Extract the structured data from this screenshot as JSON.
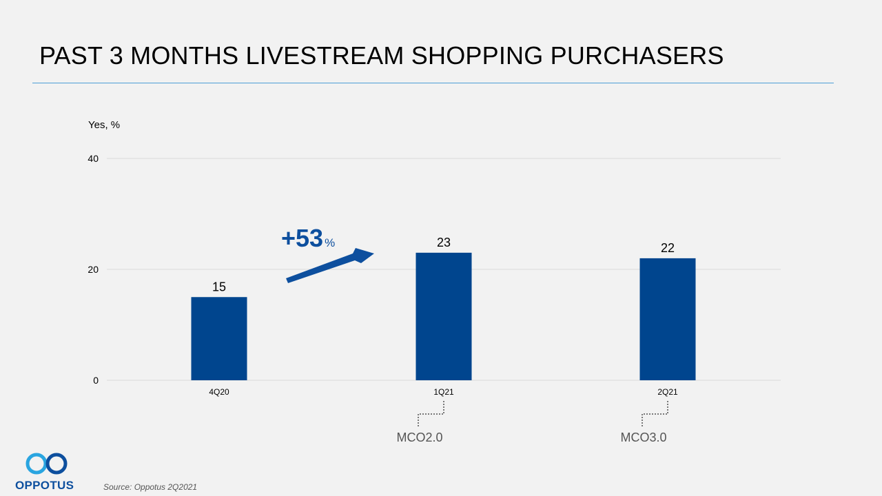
{
  "slide": {
    "title": "PAST 3 MONTHS LIVESTREAM SHOPPING PURCHASERS",
    "source": "Source: Oppotus 2Q2021",
    "logo_text": "OPPOTUS"
  },
  "colors": {
    "bar": "#00458e",
    "accent": "#0d4f9e",
    "logo_light": "#2aa5e0",
    "grid": "#d9d9d9",
    "rule": "#4a9cd6"
  },
  "chart_data": {
    "type": "bar",
    "ylabel": "Yes, %",
    "ylim": [
      0,
      40
    ],
    "yticks": [
      0,
      20,
      40
    ],
    "grid": true,
    "categories": [
      "4Q20",
      "1Q21",
      "2Q21"
    ],
    "values": [
      15,
      23,
      22
    ],
    "data_labels": [
      "15",
      "23",
      "22"
    ],
    "annotations": {
      "growth": {
        "number": "+53",
        "unit": "%"
      },
      "phases": [
        {
          "category": "1Q21",
          "label": "MCO2.0"
        },
        {
          "category": "2Q21",
          "label": "MCO3.0"
        }
      ]
    }
  }
}
